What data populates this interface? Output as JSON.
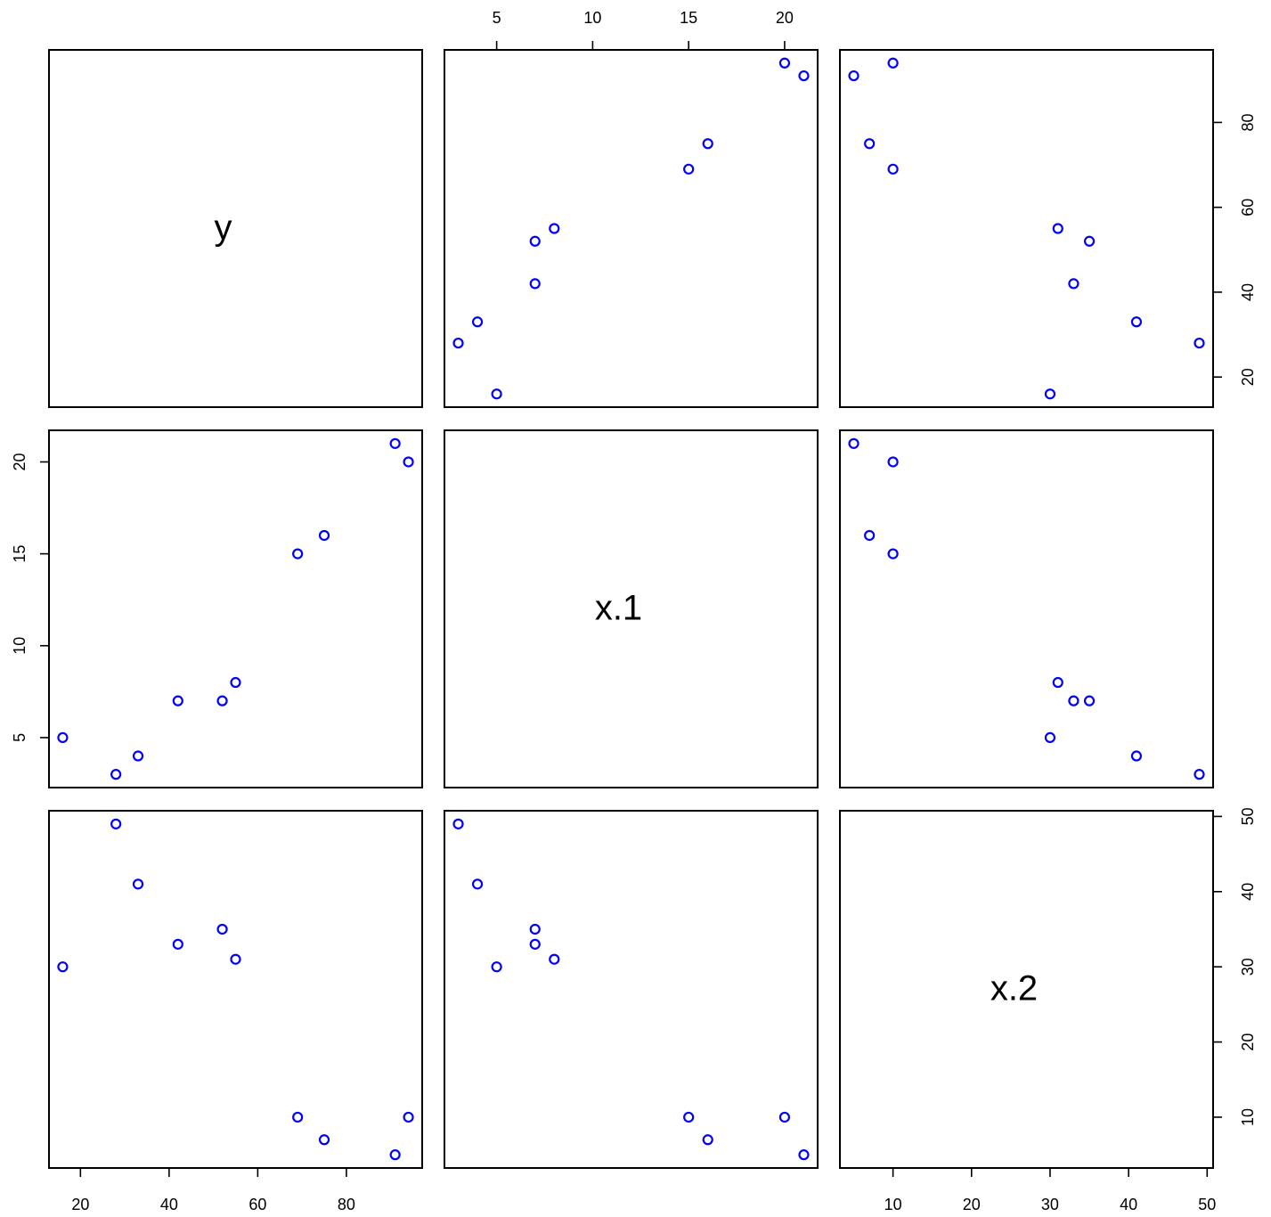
{
  "chart_data": {
    "type": "scatter",
    "layout": "pairs-matrix",
    "variables": [
      {
        "name": "y",
        "values": [
          16,
          28,
          33,
          42,
          52,
          55,
          69,
          75,
          91,
          94
        ],
        "ticks": [
          20,
          40,
          60,
          80
        ],
        "lim": [
          12.9,
          97.1
        ]
      },
      {
        "name": "x.1",
        "values": [
          5,
          3,
          4,
          7,
          7,
          8,
          15,
          16,
          21,
          20
        ],
        "ticks": [
          5,
          10,
          15,
          20
        ],
        "lim": [
          2.28,
          21.72
        ]
      },
      {
        "name": "x.2",
        "values": [
          30,
          49,
          41,
          33,
          35,
          31,
          10,
          7,
          5,
          10
        ],
        "ticks": [
          10,
          20,
          30,
          40,
          50
        ],
        "lim": [
          3.24,
          50.76
        ]
      }
    ],
    "point_color": "#0000ff",
    "point_shape": "open-circle",
    "grid": false
  }
}
